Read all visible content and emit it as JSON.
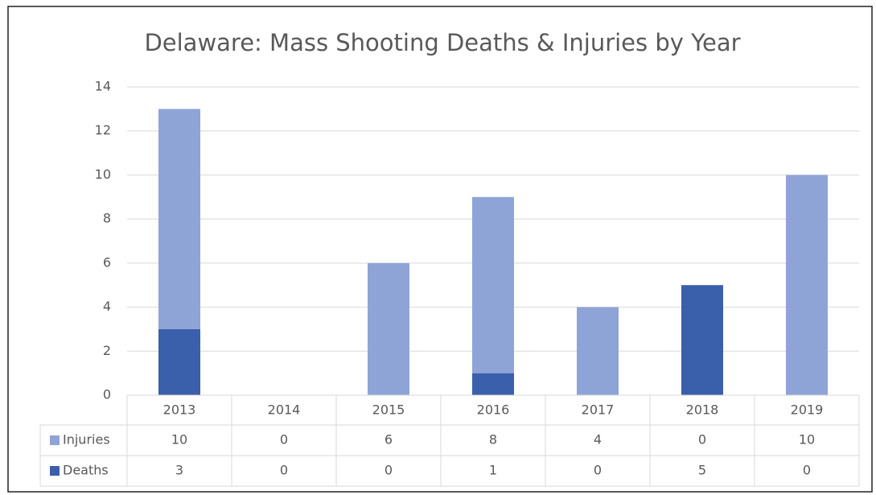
{
  "chart_data": {
    "type": "bar",
    "stacked": true,
    "title": "Delaware: Mass Shooting Deaths & Injuries by Year",
    "categories": [
      "2013",
      "2014",
      "2015",
      "2016",
      "2017",
      "2018",
      "2019"
    ],
    "series": [
      {
        "name": "Injuries",
        "color": "#8fa4d6",
        "values": [
          10,
          0,
          6,
          8,
          4,
          0,
          10
        ]
      },
      {
        "name": "Deaths",
        "color": "#3a5fab",
        "values": [
          3,
          0,
          0,
          1,
          0,
          5,
          0
        ]
      }
    ],
    "ylim": [
      0,
      14
    ],
    "yticks": [
      0,
      2,
      4,
      6,
      8,
      10,
      12,
      14
    ],
    "grid": true,
    "data_table": true
  }
}
